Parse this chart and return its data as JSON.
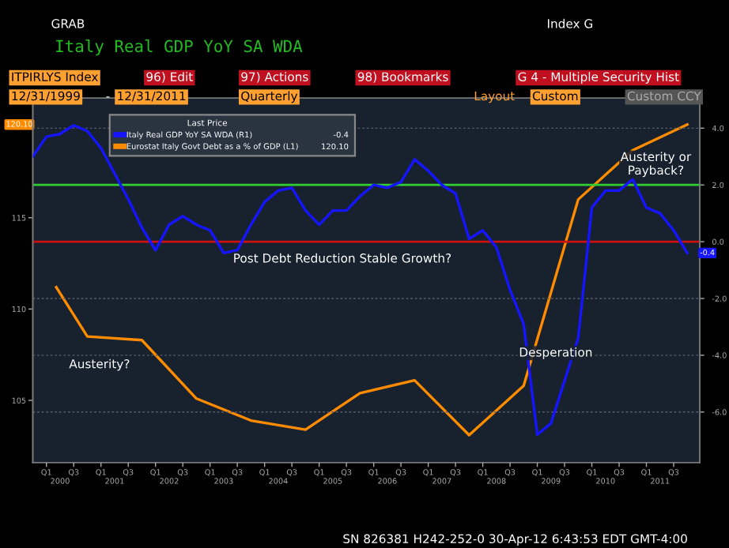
{
  "chart_data": {
    "type": "line",
    "title": "Italy Real GDP YoY SA WDA",
    "annotations": [
      "GRAB",
      "Index G",
      "ITPIRLYS Index",
      "96) Edit",
      "97) Actions",
      "98) Bookmarks",
      "G 4 - Multiple Security Hist",
      "12/31/1999",
      "-",
      "12/31/2011",
      "Quarterly",
      "Layout",
      "Custom",
      "Custom CCY",
      "SN 826381 H242-252-0 30-Apr-12 6:43:53 EDT GMT-4:00",
      "Post Debt Reduction Stable Growth?",
      "Austerity?",
      "Desperation",
      "Austerity or\nPayback?",
      "-0.4",
      "120.10",
      "-0.4",
      "120.10",
      "Q1",
      "Q3",
      "Q1",
      "Q3",
      "Q1",
      "Q3",
      "Q1",
      "Q3",
      "Q1",
      "Q3",
      "Q1",
      "Q3",
      "Q1",
      "Q3",
      "Q1",
      "Q3",
      "Q1",
      "Q3",
      "Q1",
      "Q3",
      "Q1",
      "Q3",
      "Q1",
      "Q3"
    ],
    "legend_title": "Last Price",
    "legend": "top left",
    "xlim": [
      2000.0,
      2012.23
    ],
    "xticks": [
      {
        "value": 2000.5,
        "label": "2000"
      },
      {
        "value": 2001.5,
        "label": "2001"
      },
      {
        "value": 2002.5,
        "label": "2002"
      },
      {
        "value": 2003.5,
        "label": "2003"
      },
      {
        "value": 2004.5,
        "label": "2004"
      },
      {
        "value": 2005.5,
        "label": "2005"
      },
      {
        "value": 2006.5,
        "label": "2006"
      },
      {
        "value": 2007.5,
        "label": "2007"
      },
      {
        "value": 2008.5,
        "label": "2008"
      },
      {
        "value": 2009.5,
        "label": "2009"
      },
      {
        "value": 2010.5,
        "label": "2010"
      },
      {
        "value": 2011.5,
        "label": "2011"
      }
    ],
    "ylim": [
      101.6,
      121.55
    ],
    "yticks": [
      105,
      110,
      115
    ],
    "y2lim": [
      -7.78,
      5.06
    ],
    "y2ticks": [
      {
        "value": -6,
        "label": "-6.0"
      },
      {
        "value": -4,
        "label": "-4.0"
      },
      {
        "value": -2,
        "label": "-2.0"
      },
      {
        "value": 0,
        "label": "0.0"
      },
      {
        "value": 2,
        "label": "2.0"
      },
      {
        "value": 4,
        "label": "4.0"
      }
    ],
    "grid": "y",
    "ref_lines": [
      {
        "axis": "y2",
        "value": 2,
        "color": "#33cc33"
      },
      {
        "axis": "y2",
        "value": 0,
        "color": "#cc1111"
      }
    ],
    "series": [
      {
        "name": "Italy Real GDP YoY SA WDA (R1)",
        "color": "#1515ff",
        "axis": "y2",
        "x": [
          2000.0,
          2000.25,
          2000.5,
          2000.75,
          2001.0,
          2001.25,
          2001.5,
          2001.75,
          2002.0,
          2002.25,
          2002.5,
          2002.75,
          2003.0,
          2003.25,
          2003.5,
          2003.75,
          2004.0,
          2004.25,
          2004.5,
          2004.75,
          2005.0,
          2005.25,
          2005.5,
          2005.75,
          2006.0,
          2006.25,
          2006.5,
          2006.75,
          2007.0,
          2007.25,
          2007.5,
          2007.75,
          2008.0,
          2008.25,
          2008.5,
          2008.75,
          2009.0,
          2009.25,
          2009.5,
          2009.75,
          2010.0,
          2010.25,
          2010.5,
          2010.75,
          2011.0,
          2011.25,
          2011.5,
          2011.75,
          2012.0
        ],
        "values": [
          3.0,
          3.7,
          3.8,
          4.1,
          3.9,
          3.3,
          2.4,
          1.5,
          0.5,
          -0.3,
          0.6,
          0.9,
          0.6,
          0.4,
          -0.4,
          -0.3,
          0.6,
          1.4,
          1.8,
          1.9,
          1.1,
          0.6,
          1.1,
          1.1,
          1.6,
          2.0,
          1.9,
          2.1,
          2.9,
          2.5,
          2.0,
          1.7,
          0.1,
          0.4,
          -0.2,
          -1.7,
          -2.9,
          -6.8,
          -6.4,
          -4.9,
          -3.4,
          1.2,
          1.8,
          1.8,
          2.2,
          1.2,
          1.0,
          0.4,
          -0.4
        ]
      },
      {
        "name": "Eurostat Italy Govt Debt as a % of GDP (L1)",
        "color": "#ff8c00",
        "x": [
          2000.43,
          2001.0,
          2002.0,
          2003.0,
          2004.0,
          2005.0,
          2006.0,
          2007.0,
          2008.0,
          2009.0,
          2010.0,
          2011.0,
          2012.0
        ],
        "values": [
          111.2,
          108.5,
          108.3,
          105.1,
          103.9,
          103.4,
          105.4,
          106.1,
          103.1,
          105.8,
          116.0,
          118.7,
          120.1
        ]
      }
    ]
  }
}
